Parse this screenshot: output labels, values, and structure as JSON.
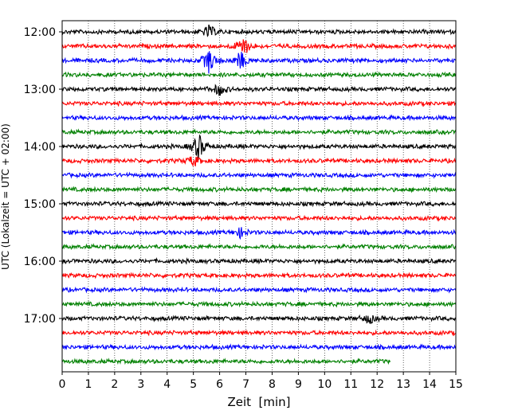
{
  "chart_data": {
    "type": "line",
    "title": "",
    "xlabel": "Zeit  [min]",
    "ylabel": "UTC (Lokalzeit = UTC + 02:00)",
    "xlim": [
      0,
      15
    ],
    "x_ticks": [
      "0",
      "1",
      "2",
      "3",
      "4",
      "5",
      "6",
      "7",
      "8",
      "9",
      "10",
      "11",
      "12",
      "13",
      "14",
      "15"
    ],
    "y_tick_labels": [
      "12:00",
      "13:00",
      "14:00",
      "15:00",
      "16:00",
      "17:00"
    ],
    "grid": "vertical dotted at each minute",
    "row_interval_minutes": 15,
    "row_start_times": [
      "12:00",
      "12:15",
      "12:30",
      "12:45",
      "13:00",
      "13:15",
      "13:30",
      "13:45",
      "14:00",
      "14:15",
      "14:30",
      "14:45",
      "15:00",
      "15:15",
      "15:30",
      "15:45",
      "16:00",
      "16:15",
      "16:30",
      "16:45",
      "17:00",
      "17:15",
      "17:30",
      "17:45"
    ],
    "row_colors": [
      "#000000",
      "#ff0000",
      "#0000ff",
      "#008000"
    ],
    "last_row_end_minute": 12.5,
    "events": [
      {
        "row": 0,
        "minute": 5.6,
        "amplitude": 0.9
      },
      {
        "row": 1,
        "minute": 6.9,
        "amplitude": 1.6
      },
      {
        "row": 2,
        "minute": 5.6,
        "amplitude": 1.8
      },
      {
        "row": 2,
        "minute": 6.8,
        "amplitude": 1.3
      },
      {
        "row": 4,
        "minute": 6.0,
        "amplitude": 0.9
      },
      {
        "row": 8,
        "minute": 5.2,
        "amplitude": 1.9
      },
      {
        "row": 9,
        "minute": 5.0,
        "amplitude": 0.8
      },
      {
        "row": 14,
        "minute": 6.8,
        "amplitude": 0.7
      },
      {
        "row": 20,
        "minute": 11.7,
        "amplitude": 0.7
      }
    ]
  }
}
